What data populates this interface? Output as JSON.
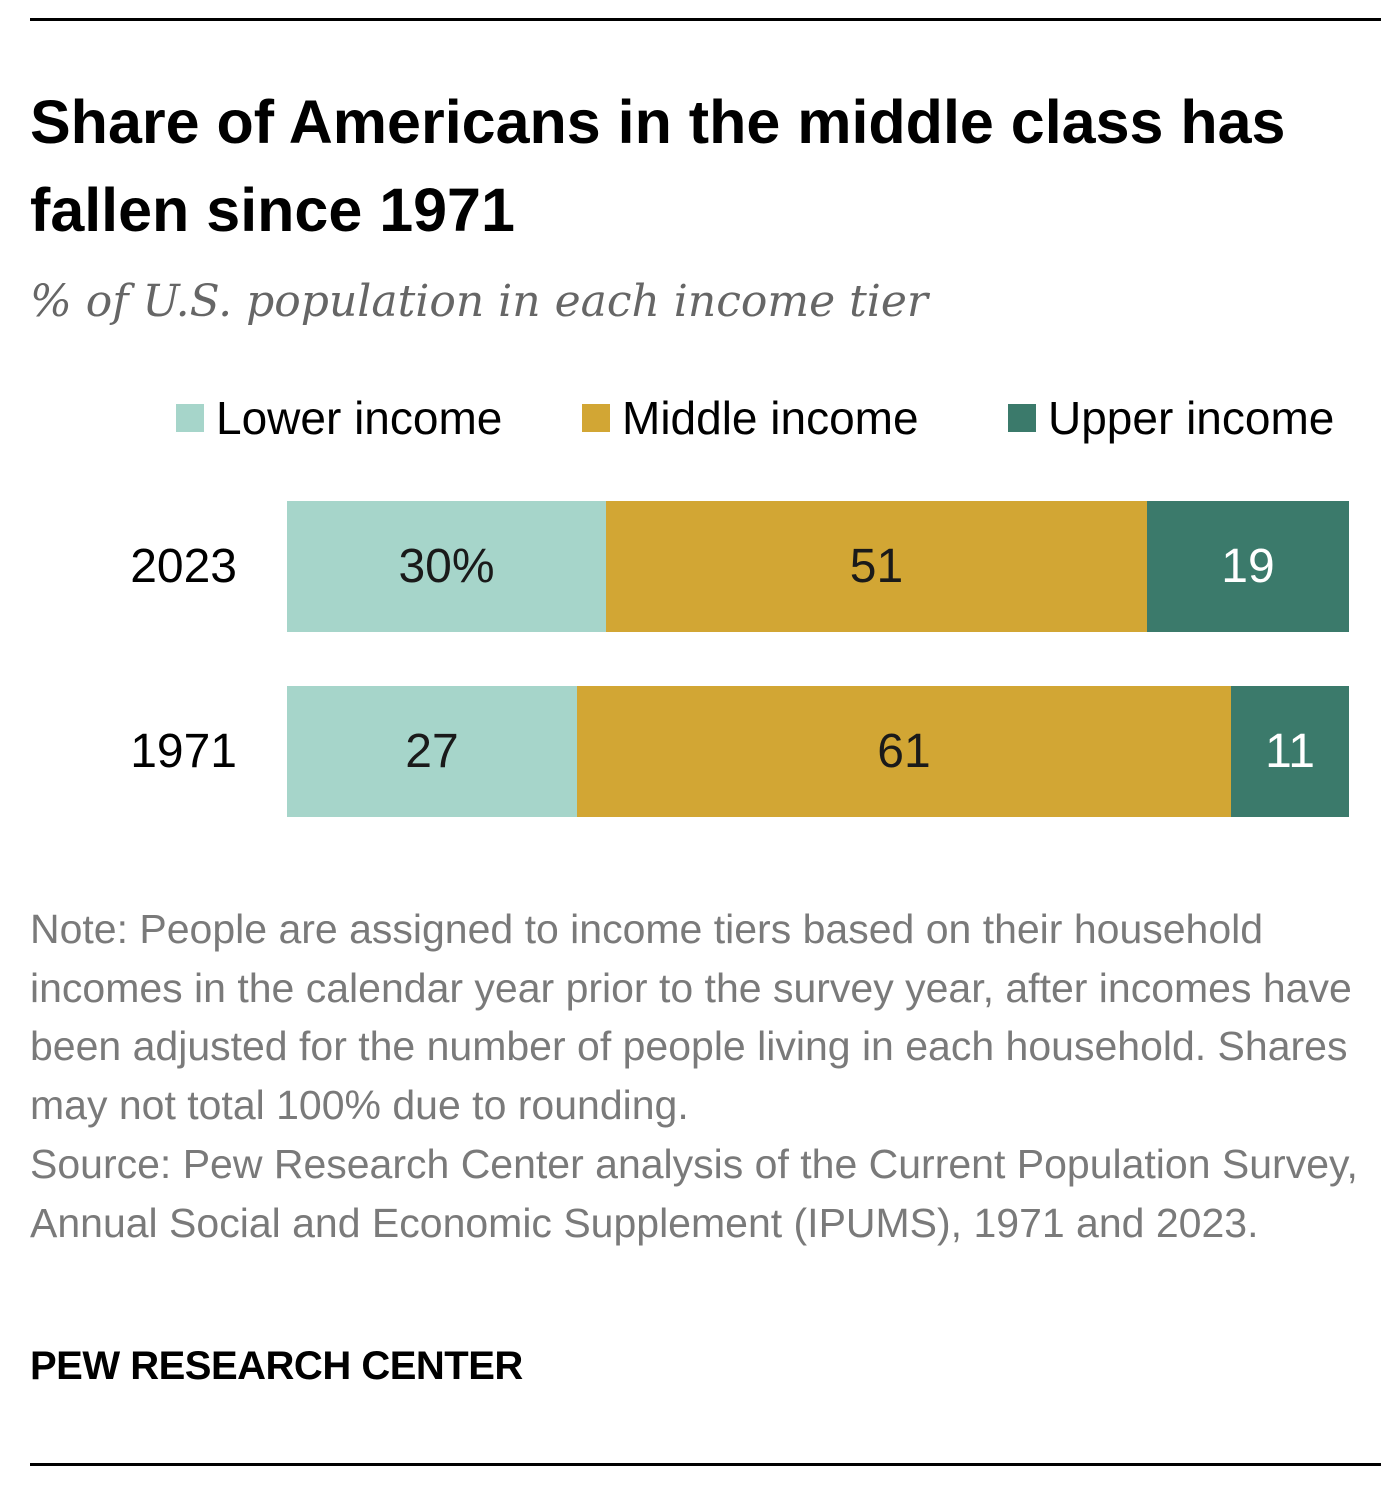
{
  "title": "Share of Americans in the middle class has fallen since 1971",
  "subtitle": "% of U.S. population in each income tier",
  "note": "Note: People are assigned to income tiers based on their household incomes in the calendar year prior to the survey year, after incomes have been adjusted for the number of people living in each household. Shares may not total 100% due to rounding.",
  "source": "Source: Pew Research Center analysis of the Current Population Survey, Annual Social and Economic Supplement (IPUMS), 1971 and 2023.",
  "brand": "PEW RESEARCH CENTER",
  "legend": [
    {
      "label": "Lower income",
      "color": "#a6d5ca"
    },
    {
      "label": "Middle income",
      "color": "#d2a634"
    },
    {
      "label": "Upper income",
      "color": "#3b7a6b"
    }
  ],
  "chart_data": {
    "type": "bar",
    "orientation": "horizontal",
    "stacked": true,
    "categories": [
      "2023",
      "1971"
    ],
    "series": [
      {
        "name": "Lower income",
        "values": [
          30,
          27
        ],
        "labels": [
          "30%",
          "27"
        ],
        "color": "#a6d5ca",
        "label_color": "#1a1a1a"
      },
      {
        "name": "Middle income",
        "values": [
          51,
          61
        ],
        "labels": [
          "51",
          "61"
        ],
        "color": "#d2a634",
        "label_color": "#1a1a1a"
      },
      {
        "name": "Upper income",
        "values": [
          19,
          11
        ],
        "labels": [
          "19",
          "11"
        ],
        "color": "#3b7a6b",
        "label_color": "#ffffff"
      }
    ],
    "xlim": [
      0,
      100
    ],
    "grid": false,
    "legend_position": "top"
  }
}
